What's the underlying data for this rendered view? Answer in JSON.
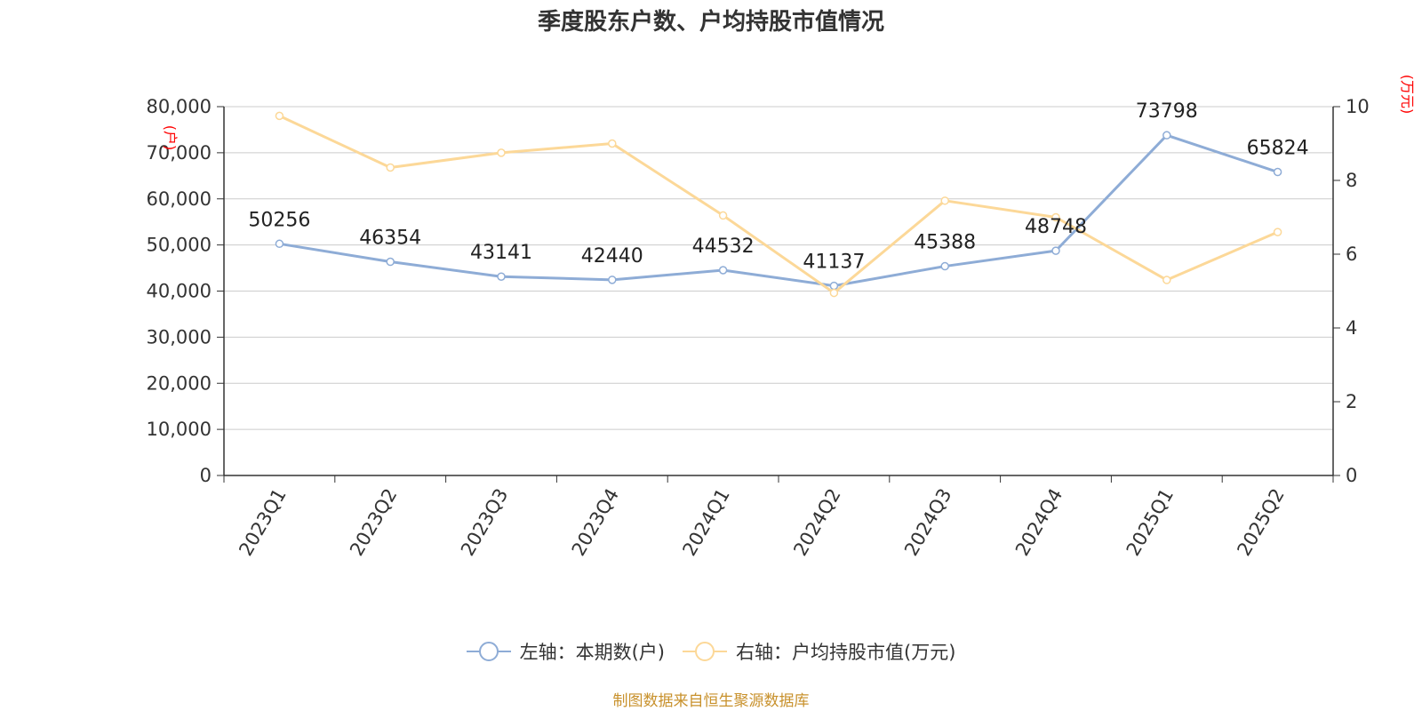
{
  "chart_data": {
    "type": "line",
    "title": "季度股东户数、户均持股市值情况",
    "categories": [
      "2023Q1",
      "2023Q2",
      "2023Q3",
      "2023Q4",
      "2024Q1",
      "2024Q2",
      "2024Q3",
      "2024Q4",
      "2025Q1",
      "2025Q2"
    ],
    "series": [
      {
        "name": "左轴：本期数(户)",
        "axis": "left",
        "color": "#8eacd6",
        "values": [
          50256,
          46354,
          43141,
          42440,
          44532,
          41137,
          45388,
          48748,
          73798,
          65824
        ],
        "labels": [
          "50256",
          "46354",
          "43141",
          "42440",
          "44532",
          "41137",
          "45388",
          "48748",
          "73798",
          "65824"
        ]
      },
      {
        "name": "右轴：户均持股市值(万元)",
        "axis": "right",
        "color": "#fcd898",
        "values": [
          9.75,
          8.35,
          8.75,
          9.0,
          7.05,
          4.95,
          7.45,
          7.0,
          5.3,
          6.6
        ]
      }
    ],
    "left_axis": {
      "unit": "(户)",
      "ylim": [
        0,
        80000
      ],
      "ticks": [
        0,
        10000,
        20000,
        30000,
        40000,
        50000,
        60000,
        70000,
        80000
      ],
      "tick_labels": [
        "0",
        "10,000",
        "20,000",
        "30,000",
        "40,000",
        "50,000",
        "60,000",
        "70,000",
        "80,000"
      ]
    },
    "right_axis": {
      "unit": "(万元)",
      "ylim": [
        0,
        10
      ],
      "ticks": [
        0,
        2,
        4,
        6,
        8,
        10
      ],
      "tick_labels": [
        "0",
        "2",
        "4",
        "6",
        "8",
        "10"
      ]
    },
    "grid": true,
    "legend_position": "bottom"
  },
  "source_text": "制图数据来自恒生聚源数据库"
}
